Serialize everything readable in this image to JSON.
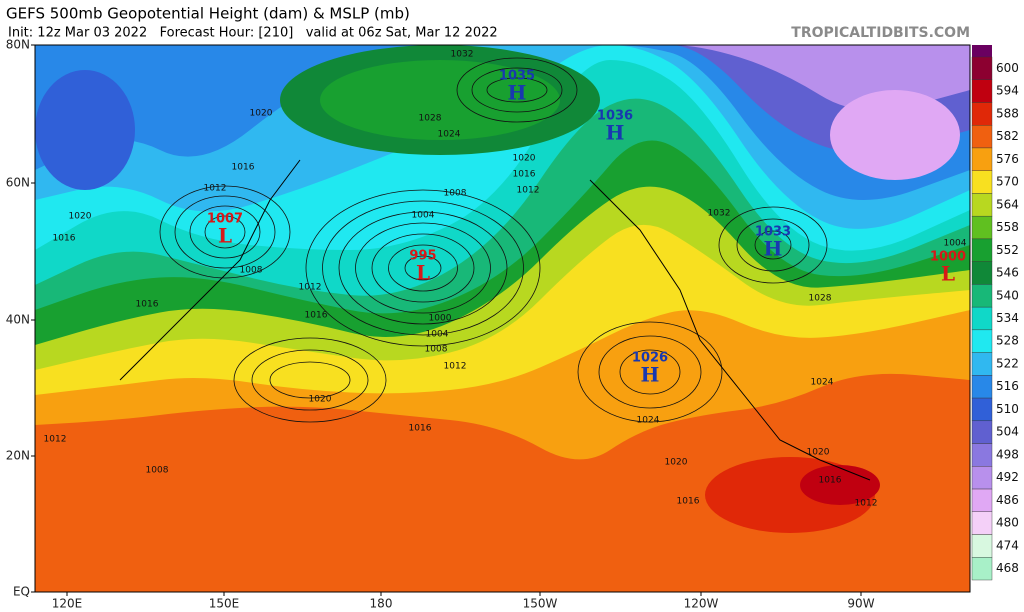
{
  "header": {
    "title": "GEFS 500mb Geopotential Height (dam) & MSLP (mb)",
    "subtitle": "Init: 12z Mar 03 2022   Forecast Hour: [210]   valid at 06z Sat, Mar 12 2022",
    "brand": "TROPICALTIDBITS.COM"
  },
  "map": {
    "lat_labels": [
      "80N",
      "60N",
      "40N",
      "20N",
      "EQ"
    ],
    "lon_labels": [
      "120E",
      "150E",
      "180",
      "150W",
      "120W",
      "90W"
    ],
    "centers": [
      {
        "type": "H",
        "value": "1035"
      },
      {
        "type": "H",
        "value": "1036"
      },
      {
        "type": "L",
        "value": "1007"
      },
      {
        "type": "L",
        "value": "995"
      },
      {
        "type": "H",
        "value": "1033"
      },
      {
        "type": "L",
        "value": "1000"
      },
      {
        "type": "H",
        "value": "1026"
      }
    ],
    "isobar_labels": [
      1032,
      1028,
      1024,
      1020,
      1016,
      1012,
      1020,
      1016,
      1008,
      1004,
      1012,
      1016,
      1000,
      1004,
      1008,
      1012,
      1020,
      1016,
      1008,
      1012,
      1020,
      1016,
      1012,
      1032,
      1028,
      1024,
      1024,
      1020,
      1016,
      1020,
      1016,
      1012,
      1008,
      1016,
      1004
    ]
  },
  "colorbar": {
    "levels": [
      600,
      594,
      588,
      582,
      576,
      570,
      564,
      558,
      552,
      546,
      540,
      534,
      528,
      522,
      516,
      510,
      504,
      498,
      492,
      486,
      480,
      474,
      468
    ],
    "colors": [
      "#8c0030",
      "#c00010",
      "#e02808",
      "#f06010",
      "#f8a010",
      "#f8e020",
      "#b8d820",
      "#60c020",
      "#18a030",
      "#108838",
      "#18b878",
      "#10d8c8",
      "#20e8f0",
      "#30b8f0",
      "#2888e8",
      "#3060d8",
      "#6060d0",
      "#8a78e0",
      "#b890ec",
      "#e0a8f4",
      "#f4d0f8",
      "#d8f8e0",
      "#a8f0c8"
    ]
  }
}
